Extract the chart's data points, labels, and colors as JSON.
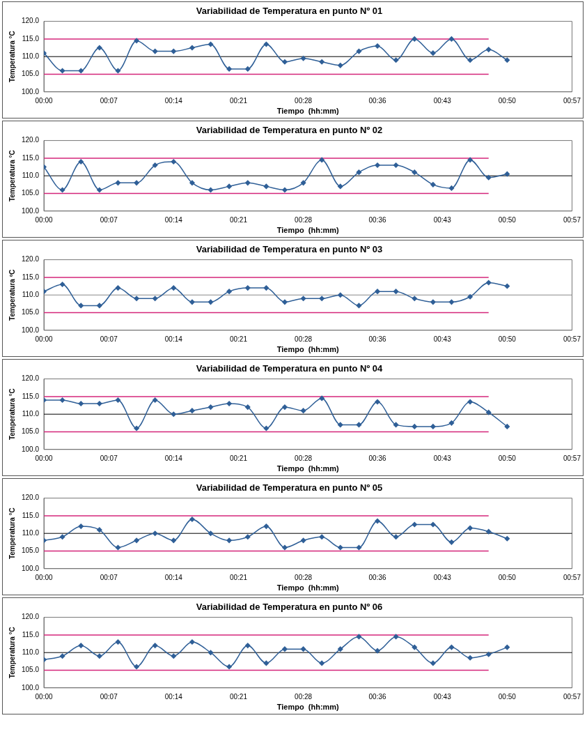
{
  "chart_data": [
    {
      "type": "line",
      "title": "Variabilidad de Temperatura en punto Nº 01",
      "xlabel": "Tiempo  (hh:mm)",
      "ylabel": "Temperatura °C",
      "marker": "diamond",
      "grid": false,
      "legend": false,
      "x": [
        0,
        0.0333,
        0.0667,
        0.1,
        0.1333,
        0.1667,
        0.2,
        0.2333,
        0.2667,
        0.3,
        0.3333,
        0.3667,
        0.4,
        0.4333,
        0.4667,
        0.5,
        0.5333,
        0.5667,
        0.6,
        0.6333,
        0.6667,
        0.7,
        0.7333,
        0.7667,
        0.8,
        0.8333
      ],
      "xlim": [
        0,
        0.95
      ],
      "xticks": [
        {
          "value": 0,
          "label": "00:00"
        },
        {
          "value": 0.1167,
          "label": "00:07"
        },
        {
          "value": 0.2333,
          "label": "00:14"
        },
        {
          "value": 0.35,
          "label": "00:21"
        },
        {
          "value": 0.4667,
          "label": "00:28"
        },
        {
          "value": 0.6,
          "label": "00:36"
        },
        {
          "value": 0.7167,
          "label": "00:43"
        },
        {
          "value": 0.8333,
          "label": "00:50"
        },
        {
          "value": 0.95,
          "label": "00:57"
        }
      ],
      "ylim": [
        100,
        120
      ],
      "yticks": [
        {
          "value": 100,
          "label": "100.0"
        },
        {
          "value": 105,
          "label": "105.0"
        },
        {
          "value": 110,
          "label": "110.0"
        },
        {
          "value": 115,
          "label": "115.0"
        },
        {
          "value": 120,
          "label": "120.0"
        }
      ],
      "ref_lines": [
        {
          "axis": "y",
          "value": 110,
          "color": "#000000"
        }
      ],
      "series": [
        {
          "color": "#2f5f97",
          "values": [
            111,
            106,
            106,
            112.5,
            106,
            114.5,
            111.5,
            111.5,
            112.5,
            113.5,
            106.5,
            106.5,
            113.5,
            108.5,
            109.5,
            108.5,
            107.5,
            111.5,
            113,
            109,
            115,
            111,
            115,
            109,
            112,
            109
          ]
        },
        {
          "color": "#d4267a",
          "marker": "none",
          "values": [
            115,
            115,
            115,
            115,
            115,
            115,
            115,
            115,
            115,
            115,
            115,
            115,
            115,
            115,
            115,
            115,
            115,
            115,
            115,
            115,
            115,
            115,
            115,
            115,
            115,
            null
          ]
        },
        {
          "color": "#d4267a",
          "marker": "none",
          "values": [
            105,
            105,
            105,
            105,
            105,
            105,
            105,
            105,
            105,
            105,
            105,
            105,
            105,
            105,
            105,
            105,
            105,
            105,
            105,
            105,
            105,
            105,
            105,
            105,
            105,
            null
          ]
        }
      ]
    },
    {
      "type": "line",
      "title": "Variabilidad de Temperatura en punto Nº 02",
      "xlabel": "Tiempo  (hh:mm)",
      "ylabel": "Temperatura °C",
      "marker": "diamond",
      "grid": false,
      "legend": false,
      "x": [
        0,
        0.0333,
        0.0667,
        0.1,
        0.1333,
        0.1667,
        0.2,
        0.2333,
        0.2667,
        0.3,
        0.3333,
        0.3667,
        0.4,
        0.4333,
        0.4667,
        0.5,
        0.5333,
        0.5667,
        0.6,
        0.6333,
        0.6667,
        0.7,
        0.7333,
        0.7667,
        0.8,
        0.8333
      ],
      "xlim": [
        0,
        0.95
      ],
      "xticks": [
        {
          "value": 0,
          "label": "00:00"
        },
        {
          "value": 0.1167,
          "label": "00:07"
        },
        {
          "value": 0.2333,
          "label": "00:14"
        },
        {
          "value": 0.35,
          "label": "00:21"
        },
        {
          "value": 0.4667,
          "label": "00:28"
        },
        {
          "value": 0.6,
          "label": "00:36"
        },
        {
          "value": 0.7167,
          "label": "00:43"
        },
        {
          "value": 0.8333,
          "label": "00:50"
        },
        {
          "value": 0.95,
          "label": "00:57"
        }
      ],
      "ylim": [
        100,
        120
      ],
      "yticks": [
        {
          "value": 100,
          "label": "100.0"
        },
        {
          "value": 105,
          "label": "105.0"
        },
        {
          "value": 110,
          "label": "110.0"
        },
        {
          "value": 115,
          "label": "115.0"
        },
        {
          "value": 120,
          "label": "120.0"
        }
      ],
      "ref_lines": [
        {
          "axis": "y",
          "value": 110,
          "color": "#000000"
        }
      ],
      "series": [
        {
          "color": "#2f5f97",
          "values": [
            112.5,
            106,
            114,
            106,
            108,
            108,
            113,
            114,
            108,
            106,
            107,
            108,
            107,
            106,
            108,
            114.5,
            107,
            111,
            113,
            113,
            111,
            107.5,
            106.5,
            114.5,
            109.5,
            110.5
          ]
        },
        {
          "color": "#d4267a",
          "marker": "none",
          "values": [
            115,
            115,
            115,
            115,
            115,
            115,
            115,
            115,
            115,
            115,
            115,
            115,
            115,
            115,
            115,
            115,
            115,
            115,
            115,
            115,
            115,
            115,
            115,
            115,
            115,
            null
          ]
        },
        {
          "color": "#d4267a",
          "marker": "none",
          "values": [
            105,
            105,
            105,
            105,
            105,
            105,
            105,
            105,
            105,
            105,
            105,
            105,
            105,
            105,
            105,
            105,
            105,
            105,
            105,
            105,
            105,
            105,
            105,
            105,
            105,
            null
          ]
        }
      ]
    },
    {
      "type": "line",
      "title": "Variabilidad de Temperatura en punto Nº 03",
      "xlabel": "Tiempo  (hh:mm)",
      "ylabel": "Temperatura ºC",
      "marker": "diamond",
      "grid": false,
      "legend": false,
      "x": [
        0,
        0.0333,
        0.0667,
        0.1,
        0.1333,
        0.1667,
        0.2,
        0.2333,
        0.2667,
        0.3,
        0.3333,
        0.3667,
        0.4,
        0.4333,
        0.4667,
        0.5,
        0.5333,
        0.5667,
        0.6,
        0.6333,
        0.6667,
        0.7,
        0.7333,
        0.7667,
        0.8,
        0.8333
      ],
      "xlim": [
        0,
        0.95
      ],
      "xticks": [
        {
          "value": 0,
          "label": "00:00"
        },
        {
          "value": 0.1167,
          "label": "00:07"
        },
        {
          "value": 0.2333,
          "label": "00:14"
        },
        {
          "value": 0.35,
          "label": "00:21"
        },
        {
          "value": 0.4667,
          "label": "00:28"
        },
        {
          "value": 0.6,
          "label": "00:36"
        },
        {
          "value": 0.7167,
          "label": "00:43"
        },
        {
          "value": 0.8333,
          "label": "00:50"
        },
        {
          "value": 0.95,
          "label": "00:57"
        }
      ],
      "ylim": [
        100,
        120
      ],
      "yticks": [
        {
          "value": 100,
          "label": "100.0"
        },
        {
          "value": 105,
          "label": "105.0"
        },
        {
          "value": 110,
          "label": "110.0"
        },
        {
          "value": 115,
          "label": "115.0"
        },
        {
          "value": 120,
          "label": "120.0"
        }
      ],
      "ref_lines": [
        {
          "axis": "y",
          "value": 110,
          "color": "#888888"
        }
      ],
      "series": [
        {
          "color": "#2f5f97",
          "values": [
            111,
            113,
            107,
            107,
            112,
            109,
            109,
            112,
            108,
            108,
            111,
            112,
            112,
            108,
            109,
            109,
            110,
            107,
            111,
            111,
            109,
            108,
            108,
            109.5,
            113.5,
            112.5
          ]
        },
        {
          "color": "#d4267a",
          "marker": "none",
          "values": [
            115,
            115,
            115,
            115,
            115,
            115,
            115,
            115,
            115,
            115,
            115,
            115,
            115,
            115,
            115,
            115,
            115,
            115,
            115,
            115,
            115,
            115,
            115,
            115,
            115,
            null
          ]
        },
        {
          "color": "#d4267a",
          "marker": "none",
          "values": [
            105,
            105,
            105,
            105,
            105,
            105,
            105,
            105,
            105,
            105,
            105,
            105,
            105,
            105,
            105,
            105,
            105,
            105,
            105,
            105,
            105,
            105,
            105,
            105,
            105,
            null
          ]
        }
      ]
    },
    {
      "type": "line",
      "title": "Variabilidad de Temperatura en punto Nº 04",
      "xlabel": "Tiempo  (hh:mm)",
      "ylabel": "Temperatura °C",
      "marker": "diamond",
      "grid": false,
      "legend": false,
      "x": [
        0,
        0.0333,
        0.0667,
        0.1,
        0.1333,
        0.1667,
        0.2,
        0.2333,
        0.2667,
        0.3,
        0.3333,
        0.3667,
        0.4,
        0.4333,
        0.4667,
        0.5,
        0.5333,
        0.5667,
        0.6,
        0.6333,
        0.6667,
        0.7,
        0.7333,
        0.7667,
        0.8,
        0.8333
      ],
      "xlim": [
        0,
        0.95
      ],
      "xticks": [
        {
          "value": 0,
          "label": "00:00"
        },
        {
          "value": 0.1167,
          "label": "00:07"
        },
        {
          "value": 0.2333,
          "label": "00:14"
        },
        {
          "value": 0.35,
          "label": "00:21"
        },
        {
          "value": 0.4667,
          "label": "00:28"
        },
        {
          "value": 0.6,
          "label": "00:36"
        },
        {
          "value": 0.7167,
          "label": "00:43"
        },
        {
          "value": 0.8333,
          "label": "00:50"
        },
        {
          "value": 0.95,
          "label": "00:57"
        }
      ],
      "ylim": [
        100,
        120
      ],
      "yticks": [
        {
          "value": 100,
          "label": "100.0"
        },
        {
          "value": 105,
          "label": "105.0"
        },
        {
          "value": 110,
          "label": "110.0"
        },
        {
          "value": 115,
          "label": "115.0"
        },
        {
          "value": 120,
          "label": "120.0"
        }
      ],
      "ref_lines": [
        {
          "axis": "y",
          "value": 110,
          "color": "#000000"
        }
      ],
      "series": [
        {
          "color": "#2f5f97",
          "values": [
            114,
            114,
            113,
            113,
            114,
            106,
            114,
            110,
            111,
            112,
            113,
            112,
            106,
            112,
            111,
            114.5,
            107,
            107,
            113.5,
            107,
            106.5,
            106.5,
            107.5,
            113.5,
            110.5,
            106.5
          ]
        },
        {
          "color": "#d4267a",
          "marker": "none",
          "values": [
            115,
            115,
            115,
            115,
            115,
            115,
            115,
            115,
            115,
            115,
            115,
            115,
            115,
            115,
            115,
            115,
            115,
            115,
            115,
            115,
            115,
            115,
            115,
            115,
            115,
            null
          ]
        },
        {
          "color": "#d4267a",
          "marker": "none",
          "values": [
            105,
            105,
            105,
            105,
            105,
            105,
            105,
            105,
            105,
            105,
            105,
            105,
            105,
            105,
            105,
            105,
            105,
            105,
            105,
            105,
            105,
            105,
            105,
            105,
            105,
            null
          ]
        }
      ]
    },
    {
      "type": "line",
      "title": "Variabilidad de Temperatura en punto Nº 05",
      "xlabel": "Tiempo  (hh:mm)",
      "ylabel": "Temperatura °C",
      "marker": "diamond",
      "grid": false,
      "legend": false,
      "x": [
        0,
        0.0333,
        0.0667,
        0.1,
        0.1333,
        0.1667,
        0.2,
        0.2333,
        0.2667,
        0.3,
        0.3333,
        0.3667,
        0.4,
        0.4333,
        0.4667,
        0.5,
        0.5333,
        0.5667,
        0.6,
        0.6333,
        0.6667,
        0.7,
        0.7333,
        0.7667,
        0.8,
        0.8333
      ],
      "xlim": [
        0,
        0.95
      ],
      "xticks": [
        {
          "value": 0,
          "label": "00:00"
        },
        {
          "value": 0.1167,
          "label": "00:07"
        },
        {
          "value": 0.2333,
          "label": "00:14"
        },
        {
          "value": 0.35,
          "label": "00:21"
        },
        {
          "value": 0.4667,
          "label": "00:28"
        },
        {
          "value": 0.6,
          "label": "00:36"
        },
        {
          "value": 0.7167,
          "label": "00:43"
        },
        {
          "value": 0.8333,
          "label": "00:50"
        },
        {
          "value": 0.95,
          "label": "00:57"
        }
      ],
      "ylim": [
        100,
        120
      ],
      "yticks": [
        {
          "value": 100,
          "label": "100.0"
        },
        {
          "value": 105,
          "label": "105.0"
        },
        {
          "value": 110,
          "label": "110.0"
        },
        {
          "value": 115,
          "label": "115.0"
        },
        {
          "value": 120,
          "label": "120.0"
        }
      ],
      "ref_lines": [
        {
          "axis": "y",
          "value": 110,
          "color": "#000000"
        }
      ],
      "series": [
        {
          "color": "#2f5f97",
          "values": [
            108,
            109,
            112,
            111,
            106,
            108,
            110,
            108,
            114,
            110,
            108,
            109,
            112,
            106,
            108,
            109,
            106,
            106,
            113.5,
            109,
            112.5,
            112.5,
            107.5,
            111.5,
            110.5,
            108.5
          ]
        },
        {
          "color": "#d4267a",
          "marker": "none",
          "values": [
            115,
            115,
            115,
            115,
            115,
            115,
            115,
            115,
            115,
            115,
            115,
            115,
            115,
            115,
            115,
            115,
            115,
            115,
            115,
            115,
            115,
            115,
            115,
            115,
            115,
            null
          ]
        },
        {
          "color": "#d4267a",
          "marker": "none",
          "values": [
            105,
            105,
            105,
            105,
            105,
            105,
            105,
            105,
            105,
            105,
            105,
            105,
            105,
            105,
            105,
            105,
            105,
            105,
            105,
            105,
            105,
            105,
            105,
            105,
            105,
            null
          ]
        }
      ]
    },
    {
      "type": "line",
      "title": "Variabilidad de Temperatura en punto Nº 06",
      "xlabel": "Tiempo  (hh:mm)",
      "ylabel": "Temperatura °C",
      "marker": "diamond",
      "grid": false,
      "legend": false,
      "x": [
        0,
        0.0333,
        0.0667,
        0.1,
        0.1333,
        0.1667,
        0.2,
        0.2333,
        0.2667,
        0.3,
        0.3333,
        0.3667,
        0.4,
        0.4333,
        0.4667,
        0.5,
        0.5333,
        0.5667,
        0.6,
        0.6333,
        0.6667,
        0.7,
        0.7333,
        0.7667,
        0.8,
        0.8333
      ],
      "xlim": [
        0,
        0.95
      ],
      "xticks": [
        {
          "value": 0,
          "label": "00:00"
        },
        {
          "value": 0.1167,
          "label": "00:07"
        },
        {
          "value": 0.2333,
          "label": "00:14"
        },
        {
          "value": 0.35,
          "label": "00:21"
        },
        {
          "value": 0.4667,
          "label": "00:28"
        },
        {
          "value": 0.6,
          "label": "00:36"
        },
        {
          "value": 0.7167,
          "label": "00:43"
        },
        {
          "value": 0.8333,
          "label": "00:50"
        },
        {
          "value": 0.95,
          "label": "00:57"
        }
      ],
      "ylim": [
        100,
        120
      ],
      "yticks": [
        {
          "value": 100,
          "label": "100.0"
        },
        {
          "value": 105,
          "label": "105.0"
        },
        {
          "value": 110,
          "label": "110.0"
        },
        {
          "value": 115,
          "label": "115.0"
        },
        {
          "value": 120,
          "label": "120.0"
        }
      ],
      "ref_lines": [
        {
          "axis": "y",
          "value": 110,
          "color": "#000000"
        }
      ],
      "series": [
        {
          "color": "#2f5f97",
          "values": [
            108,
            109,
            112,
            109,
            113,
            106,
            112,
            109,
            113,
            110,
            106,
            112,
            107,
            111,
            111,
            107,
            111,
            114.5,
            110.5,
            114.5,
            111.5,
            107,
            111.5,
            108.5,
            109.5,
            111.5
          ]
        },
        {
          "color": "#d4267a",
          "marker": "none",
          "values": [
            115,
            115,
            115,
            115,
            115,
            115,
            115,
            115,
            115,
            115,
            115,
            115,
            115,
            115,
            115,
            115,
            115,
            115,
            115,
            115,
            115,
            115,
            115,
            115,
            115,
            null
          ]
        },
        {
          "color": "#d4267a",
          "marker": "none",
          "values": [
            105,
            105,
            105,
            105,
            105,
            105,
            105,
            105,
            105,
            105,
            105,
            105,
            105,
            105,
            105,
            105,
            105,
            105,
            105,
            105,
            105,
            105,
            105,
            105,
            105,
            null
          ]
        }
      ]
    }
  ]
}
